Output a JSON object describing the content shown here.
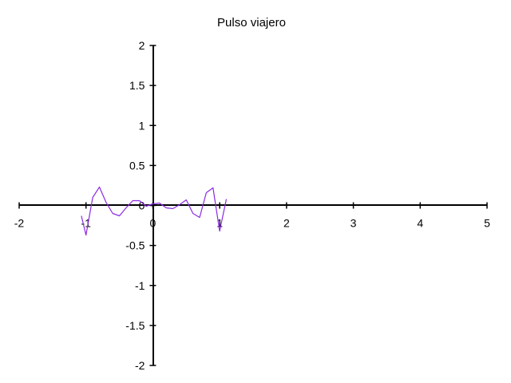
{
  "chart_data": {
    "type": "line",
    "title": "Pulso viajero",
    "xlabel": "",
    "ylabel": "",
    "xlim": [
      -2,
      5
    ],
    "ylim": [
      -2,
      2
    ],
    "x_ticks": [
      -2,
      -1,
      0,
      1,
      2,
      3,
      4,
      5
    ],
    "x_tick_labels": [
      "-2",
      "-1",
      "0",
      "1",
      "2",
      "3",
      "4",
      "5"
    ],
    "y_ticks": [
      2,
      1.5,
      1,
      0.5,
      0,
      -0.5,
      -1,
      -1.5,
      -2
    ],
    "y_tick_labels": [
      "2",
      "1.5",
      "1",
      "0.5",
      "0",
      "-0.5",
      "-1",
      "-1.5",
      "-2"
    ],
    "grid": false,
    "legend": "none",
    "series": [
      {
        "color": "#8a2be2",
        "x": [
          -1.07,
          -1.0,
          -0.9,
          -0.8,
          -0.7,
          -0.6,
          -0.5,
          -0.4,
          -0.3,
          -0.2,
          -0.1,
          0.0,
          0.1,
          0.2,
          0.3,
          0.4,
          0.5,
          0.6,
          0.7,
          0.8,
          0.9,
          1.0,
          1.1
        ],
        "y": [
          -0.13,
          -0.37,
          0.1,
          0.23,
          0.04,
          -0.1,
          -0.13,
          -0.03,
          0.06,
          0.06,
          -0.01,
          0.02,
          0.03,
          -0.03,
          -0.04,
          0.01,
          0.07,
          -0.1,
          -0.15,
          0.16,
          0.22,
          -0.32,
          0.08
        ]
      }
    ]
  }
}
